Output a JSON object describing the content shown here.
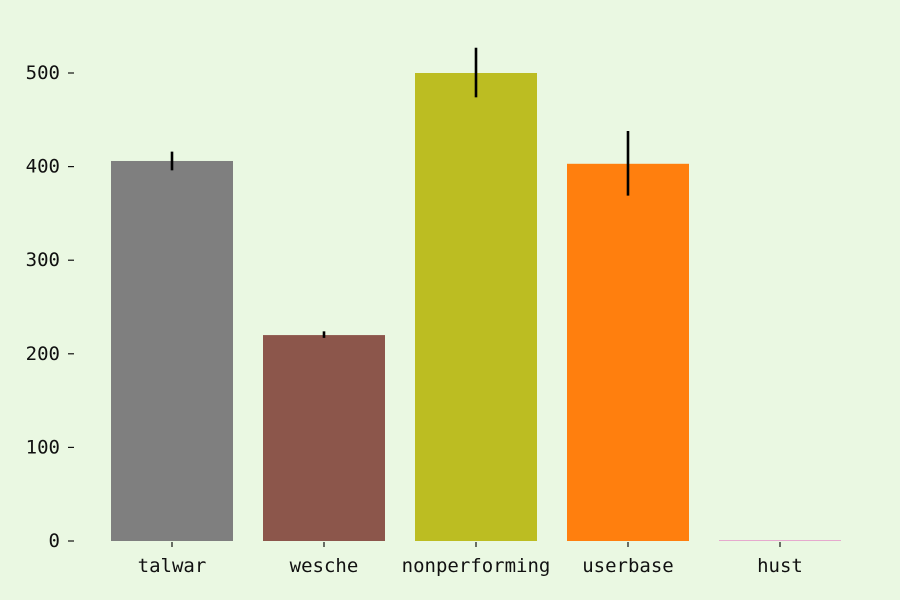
{
  "chart_data": {
    "type": "bar",
    "title": "",
    "xlabel": "",
    "ylabel": "",
    "categories": [
      "talwar",
      "wesche",
      "nonperforming",
      "userbase",
      "hust"
    ],
    "values": [
      406,
      220,
      500,
      403,
      0
    ],
    "errors": [
      [
        396,
        416
      ],
      [
        217,
        224
      ],
      [
        474,
        527
      ],
      [
        369,
        438
      ],
      [
        0,
        0
      ]
    ],
    "colors": [
      "#7f7f7f",
      "#8c564b",
      "#bcbd22",
      "#ff7f0e",
      "#e377c2"
    ],
    "ylim": [
      0,
      540
    ],
    "yticks": [
      0,
      100,
      200,
      300,
      400,
      500
    ],
    "ytick_labels": [
      "0",
      "100",
      "200",
      "300",
      "400",
      "500"
    ],
    "grid": false,
    "legend": "none",
    "background": "#eaf8e2"
  }
}
